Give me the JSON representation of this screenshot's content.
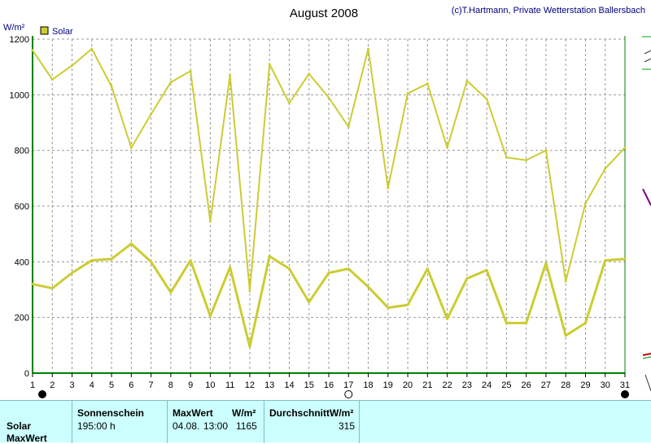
{
  "chart_data": {
    "type": "line",
    "title": "August 2008",
    "copyright": "(c)T.Hartmann, Private Wetterstation Ballersbach",
    "ylabel": "W/m²",
    "ylim": [
      0,
      1200
    ],
    "yticks": [
      0,
      200,
      400,
      600,
      800,
      1000,
      1200
    ],
    "x": [
      1,
      2,
      3,
      4,
      5,
      6,
      7,
      8,
      9,
      10,
      11,
      12,
      13,
      14,
      15,
      16,
      17,
      18,
      19,
      20,
      21,
      22,
      23,
      24,
      25,
      26,
      27,
      28,
      29,
      30,
      31
    ],
    "legend": "Solar",
    "grid": true,
    "series": [
      {
        "name": "Solar",
        "role": "max",
        "color": "#cccc33",
        "values": [
          1160,
          1055,
          1105,
          1165,
          1030,
          810,
          930,
          1045,
          1085,
          545,
          1070,
          295,
          1110,
          970,
          1075,
          990,
          885,
          1165,
          665,
          1005,
          1040,
          810,
          1050,
          985,
          775,
          765,
          800,
          330,
          610,
          735,
          810
        ]
      },
      {
        "name": "Solar",
        "role": "average",
        "color": "#cccc33",
        "values": [
          320,
          305,
          360,
          405,
          410,
          465,
          400,
          290,
          405,
          205,
          380,
          95,
          420,
          375,
          255,
          360,
          375,
          310,
          235,
          245,
          375,
          195,
          340,
          370,
          180,
          180,
          395,
          135,
          180,
          405,
          410
        ]
      }
    ],
    "moon_phases": [
      {
        "day": 1,
        "phase": "new-moon"
      },
      {
        "day": 17,
        "phase": "full-moon"
      },
      {
        "day": 31,
        "phase": "new-moon"
      }
    ]
  },
  "table": {
    "row_labels": [
      "Solar",
      "MaxWert"
    ],
    "headers": {
      "sunshine": "Sonnenschein",
      "maxwert": "MaxWert",
      "maxwert_unit": "W/m²",
      "average": "DurchschnittW/m²"
    },
    "values": {
      "sunshine": "195:00 h",
      "max_date": "04.08.",
      "max_time": "13:00",
      "max_value": "1165",
      "average": "315"
    }
  }
}
